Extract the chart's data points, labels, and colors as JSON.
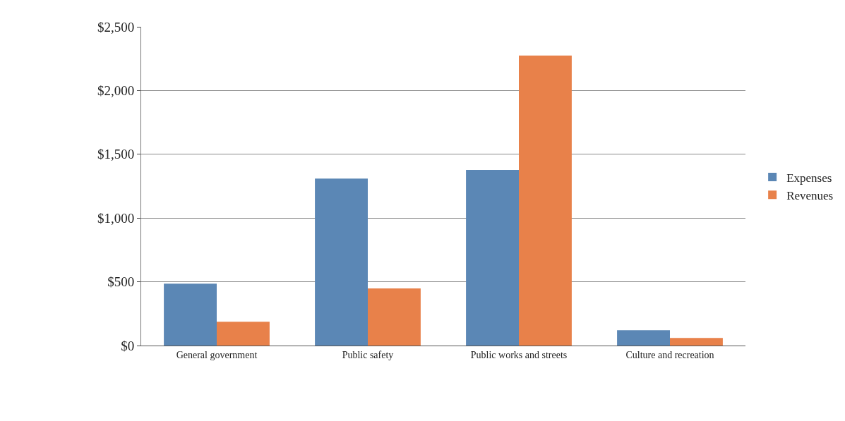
{
  "chart_data": {
    "type": "bar",
    "categories": [
      "General government",
      "Public safety",
      "Public works and streets",
      "Culture and recreation"
    ],
    "series": [
      {
        "name": "Expenses",
        "color": "#5b87b5",
        "values": [
          485,
          1310,
          1377,
          120
        ]
      },
      {
        "name": "Revenues",
        "color": "#e8814a",
        "values": [
          187,
          448,
          2274,
          59
        ]
      }
    ],
    "ylim": [
      0,
      2500
    ],
    "yticks": [
      {
        "value": 0,
        "label": "$0"
      },
      {
        "value": 500,
        "label": "$500"
      },
      {
        "value": 1000,
        "label": "$1,000"
      },
      {
        "value": 1500,
        "label": "$1,500"
      },
      {
        "value": 2000,
        "label": "$2,000"
      },
      {
        "value": 2500,
        "label": "$2,500"
      }
    ],
    "grid": "y",
    "legend": "right"
  }
}
